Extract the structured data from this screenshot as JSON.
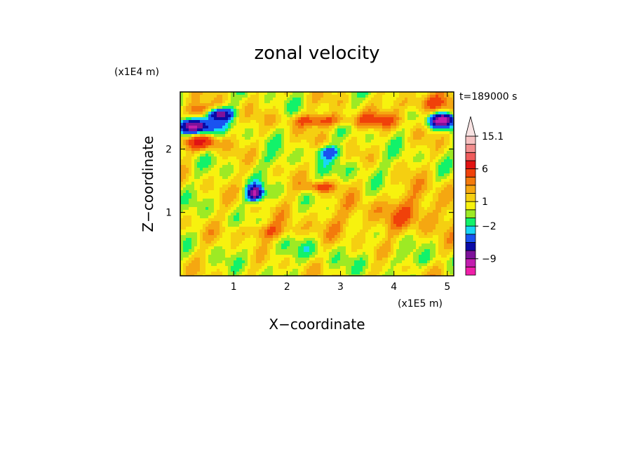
{
  "chart_data": {
    "type": "heatmap",
    "title": "zonal velocity",
    "xlabel": "X−coordinate",
    "ylabel": "Z−coordinate",
    "x_unit": "(x1E5 m)",
    "y_unit": "(x1E4 m)",
    "time_label": "t=189000 s",
    "xlim": [
      0,
      5.12
    ],
    "ylim": [
      0,
      2.9
    ],
    "x_ticks": [
      1,
      2,
      3,
      4,
      5
    ],
    "x_tick_labels": [
      "1",
      "2",
      "3",
      "4",
      "5"
    ],
    "y_ticks": [
      1,
      2
    ],
    "y_tick_labels": [
      "1",
      "2"
    ],
    "colorbar": {
      "extend": "max",
      "levels": [
        -13,
        -11,
        -9,
        -7,
        -5,
        -3,
        -2,
        -1,
        0,
        1,
        2,
        3,
        4,
        6,
        8,
        10,
        12,
        15.1
      ],
      "colors": [
        "#ef1fa9",
        "#c21dae",
        "#7e129a",
        "#0a0aa6",
        "#1a53f0",
        "#19d6f5",
        "#12f26a",
        "#9dea24",
        "#f7f20e",
        "#f5cf11",
        "#f5a711",
        "#f37a0c",
        "#f0410a",
        "#e11313",
        "#ef5c5c",
        "#f28e8e",
        "#f6c2c2"
      ],
      "tick_labels": [
        {
          "value": 15.1,
          "label": "15.1"
        },
        {
          "value": 6,
          "label": "6"
        },
        {
          "value": 1,
          "label": "1"
        },
        {
          "value": -2,
          "label": "−2"
        },
        {
          "value": -9,
          "label": "−9"
        }
      ]
    },
    "background_value": 0.6,
    "field_features": [
      {
        "x": 0.25,
        "z": 2.35,
        "sx": 0.35,
        "sz": 0.12,
        "value": -11
      },
      {
        "x": 0.7,
        "z": 2.55,
        "sx": 0.25,
        "sz": 0.1,
        "value": -9
      },
      {
        "x": 4.9,
        "z": 2.45,
        "sx": 0.25,
        "sz": 0.12,
        "value": -11
      },
      {
        "x": 1.4,
        "z": 1.3,
        "sx": 0.15,
        "sz": 0.12,
        "value": -10
      },
      {
        "x": 2.8,
        "z": 1.95,
        "sx": 0.25,
        "sz": 0.1,
        "value": -4
      },
      {
        "x": 0.4,
        "z": 2.6,
        "sx": 0.25,
        "sz": 0.12,
        "value": 5
      },
      {
        "x": 0.4,
        "z": 2.1,
        "sx": 0.35,
        "sz": 0.12,
        "value": 5
      },
      {
        "x": 2.6,
        "z": 2.45,
        "sx": 0.6,
        "sz": 0.1,
        "value": 4
      },
      {
        "x": 3.7,
        "z": 2.45,
        "sx": 0.5,
        "sz": 0.12,
        "value": 3
      },
      {
        "x": 4.6,
        "z": 2.7,
        "sx": 0.6,
        "sz": 0.15,
        "value": 3
      },
      {
        "x": 2.6,
        "z": 1.4,
        "sx": 0.3,
        "sz": 0.08,
        "value": 4
      },
      {
        "x": 1.6,
        "z": 0.7,
        "sx": 0.5,
        "sz": 0.12,
        "value": 3
      },
      {
        "x": 3.5,
        "z": 0.9,
        "sx": 1.2,
        "sz": 0.3,
        "value": 1.5
      },
      {
        "x": 4.6,
        "z": 1.1,
        "sx": 0.7,
        "sz": 0.35,
        "value": 2
      },
      {
        "x": 2.2,
        "z": 0.4,
        "sx": 0.8,
        "sz": 0.15,
        "value": -1
      },
      {
        "x": 4.2,
        "z": 0.25,
        "sx": 0.9,
        "sz": 0.1,
        "value": -1
      },
      {
        "x": 1.8,
        "z": 1.8,
        "sx": 0.4,
        "sz": 0.15,
        "value": -1
      },
      {
        "x": 3.3,
        "z": 1.7,
        "sx": 0.6,
        "sz": 0.15,
        "value": -1
      }
    ]
  }
}
